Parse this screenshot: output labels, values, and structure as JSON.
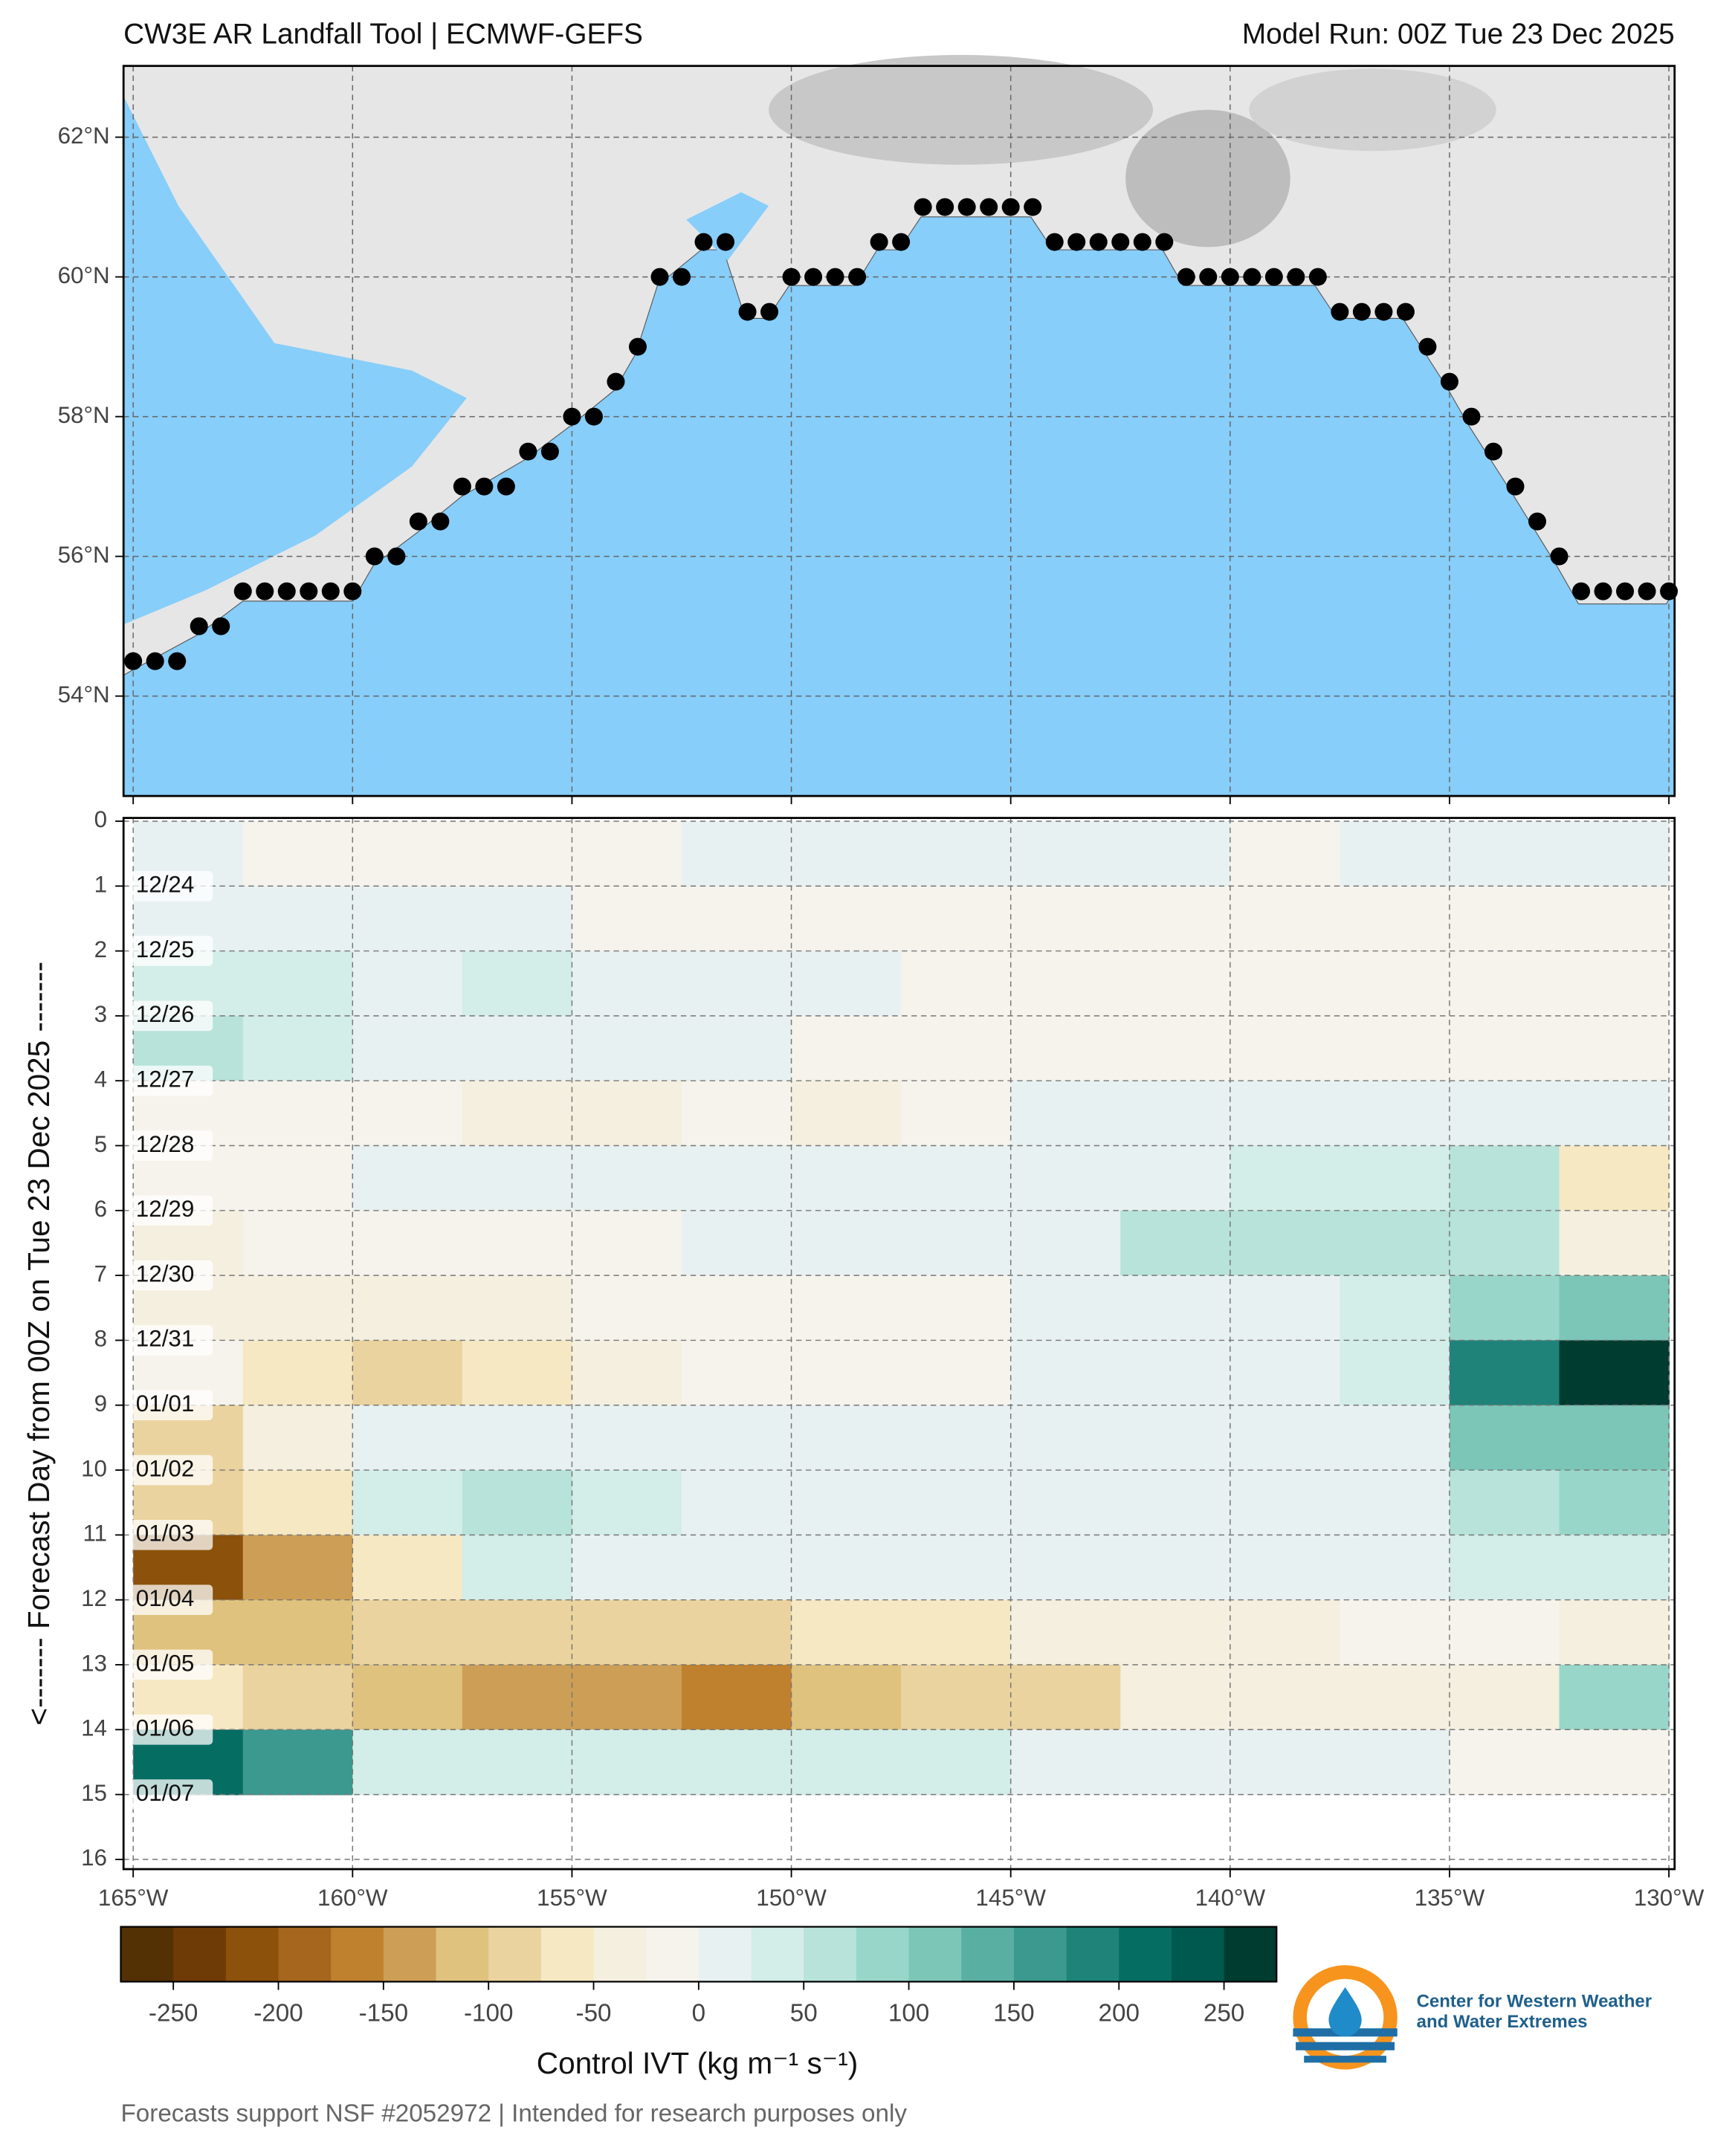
{
  "chart_data": [
    {
      "type": "map",
      "title": "CW3E AR Landfall Tool | ECMWF-GEFS",
      "subtitle": "Model Run: 00Z Tue 23 Dec 2025",
      "xlim": [
        -165.22,
        -129.87
      ],
      "ylim": [
        52.57,
        63.02
      ],
      "xticks": [
        {
          "value": -165,
          "label": "165°W"
        },
        {
          "value": -160,
          "label": "160°W"
        },
        {
          "value": -155,
          "label": "155°W"
        },
        {
          "value": -150,
          "label": "150°W"
        },
        {
          "value": -145,
          "label": "145°W"
        },
        {
          "value": -140,
          "label": "140°W"
        },
        {
          "value": -135,
          "label": "135°W"
        },
        {
          "value": -130,
          "label": "130°W"
        }
      ],
      "yticks": [
        {
          "value": 54,
          "label": "54°N"
        },
        {
          "value": 56,
          "label": "56°N"
        },
        {
          "value": 58,
          "label": "58°N"
        },
        {
          "value": 60,
          "label": "60°N"
        },
        {
          "value": 62,
          "label": "62°N"
        }
      ],
      "grid": true,
      "color": "#000000",
      "lon": [
        -165,
        -164.5,
        -164,
        -163.5,
        -163,
        -162.5,
        -162,
        -161.5,
        -161,
        -160.5,
        -160,
        -159.5,
        -159,
        -158.5,
        -158,
        -157.5,
        -157,
        -156.5,
        -156,
        -155.5,
        -155,
        -154.5,
        -154,
        -153.5,
        -153,
        -152.5,
        -152,
        -151.5,
        -151,
        -150.5,
        -150,
        -149.5,
        -149,
        -148.5,
        -148,
        -147.5,
        -147,
        -146.5,
        -146,
        -145.5,
        -145,
        -144.5,
        -144,
        -143.5,
        -143,
        -142.5,
        -142,
        -141.5,
        -141,
        -140.5,
        -140,
        -139.5,
        -139,
        -138.5,
        -138,
        -137.5,
        -137,
        -136.5,
        -136,
        -135.5,
        -135,
        -134.5,
        -134,
        -133.5,
        -133,
        -132.5,
        -132,
        -131.5,
        -131,
        -130.5,
        -130
      ],
      "lat": [
        54.5,
        54.5,
        54.5,
        55,
        55,
        55.5,
        55.5,
        55.5,
        55.5,
        55.5,
        55.5,
        56,
        56,
        56.5,
        56.5,
        57,
        57,
        57,
        57.5,
        57.5,
        58,
        58,
        58.5,
        59,
        60,
        60,
        60.5,
        60.5,
        59.5,
        59.5,
        60,
        60,
        60,
        60,
        60.5,
        60.5,
        61,
        61,
        61,
        61,
        61,
        61,
        60.5,
        60.5,
        60.5,
        60.5,
        60.5,
        60.5,
        60,
        60,
        60,
        60,
        60,
        60,
        60,
        59.5,
        59.5,
        59.5,
        59.5,
        59,
        58.5,
        58,
        57.5,
        57,
        56.5,
        56,
        55.5,
        55.5,
        55.5,
        55.5,
        55.5
      ]
    },
    {
      "type": "heatmap",
      "ylabel": "<------- Forecast Day from 00Z on Tue 23 Dec 2025 -------",
      "xlim": [
        -165.22,
        -129.87
      ],
      "ylim": [
        -0.05,
        16.15
      ],
      "yaxis_inverted": true,
      "grid": true,
      "xticks": [
        {
          "value": -165,
          "label": "165°W"
        },
        {
          "value": -160,
          "label": "160°W"
        },
        {
          "value": -155,
          "label": "155°W"
        },
        {
          "value": -150,
          "label": "150°W"
        },
        {
          "value": -145,
          "label": "145°W"
        },
        {
          "value": -140,
          "label": "140°W"
        },
        {
          "value": -135,
          "label": "135°W"
        },
        {
          "value": -130,
          "label": "130°W"
        }
      ],
      "yticks": [
        0,
        1,
        2,
        3,
        4,
        5,
        6,
        7,
        8,
        9,
        10,
        11,
        12,
        13,
        14,
        15,
        16
      ],
      "date_labels": [
        {
          "day": 1,
          "label": "12/24"
        },
        {
          "day": 2,
          "label": "12/25"
        },
        {
          "day": 3,
          "label": "12/26"
        },
        {
          "day": 4,
          "label": "12/27"
        },
        {
          "day": 5,
          "label": "12/28"
        },
        {
          "day": 6,
          "label": "12/29"
        },
        {
          "day": 7,
          "label": "12/30"
        },
        {
          "day": 8,
          "label": "12/31"
        },
        {
          "day": 9,
          "label": "01/01"
        },
        {
          "day": 10,
          "label": "01/02"
        },
        {
          "day": 11,
          "label": "01/03"
        },
        {
          "day": 12,
          "label": "01/04"
        },
        {
          "day": 13,
          "label": "01/05"
        },
        {
          "day": 14,
          "label": "01/06"
        },
        {
          "day": 15,
          "label": "01/07"
        }
      ],
      "x_edges": [
        -165,
        -162.5,
        -160,
        -157.5,
        -155,
        -152.5,
        -150,
        -147.5,
        -145,
        -142.5,
        -140,
        -137.5,
        -135,
        -132.5,
        -130
      ],
      "y_edges": [
        0,
        1,
        2,
        3,
        4,
        5,
        6,
        7,
        8,
        9,
        10,
        11,
        12,
        13,
        14,
        15
      ],
      "values": [
        [
          10,
          -10,
          -20,
          -10,
          -5,
          5,
          0,
          5,
          0,
          5,
          -5,
          5,
          10,
          10
        ],
        [
          20,
          10,
          0,
          0,
          -5,
          -5,
          -10,
          -10,
          -5,
          -5,
          -5,
          -10,
          -5,
          -5
        ],
        [
          40,
          30,
          20,
          30,
          20,
          10,
          0,
          -5,
          -5,
          -5,
          -5,
          -5,
          -5,
          -5
        ],
        [
          50,
          40,
          20,
          10,
          5,
          0,
          -5,
          -5,
          -5,
          -5,
          -5,
          -5,
          -5,
          -5
        ],
        [
          -10,
          -10,
          -5,
          -30,
          -30,
          -20,
          -30,
          -10,
          0,
          5,
          10,
          5,
          10,
          10
        ],
        [
          -20,
          -20,
          10,
          5,
          10,
          20,
          10,
          20,
          10,
          20,
          30,
          40,
          50,
          -60
        ],
        [
          -30,
          -20,
          -10,
          -10,
          -5,
          5,
          10,
          20,
          20,
          50,
          60,
          70,
          60,
          -40
        ],
        [
          -50,
          -30,
          -40,
          -30,
          -20,
          -20,
          -20,
          -10,
          0,
          10,
          20,
          30,
          80,
          120
        ],
        [
          -20,
          -60,
          -80,
          -60,
          -30,
          -20,
          -10,
          -5,
          0,
          0,
          10,
          30,
          180,
          270
        ],
        [
          -80,
          -40,
          10,
          20,
          20,
          10,
          5,
          5,
          5,
          10,
          10,
          20,
          100,
          120
        ],
        [
          -100,
          -60,
          40,
          60,
          30,
          20,
          10,
          5,
          5,
          5,
          5,
          10,
          50,
          90
        ],
        [
          -220,
          -140,
          -60,
          30,
          20,
          10,
          5,
          5,
          10,
          10,
          10,
          20,
          30,
          40
        ],
        [
          -120,
          -110,
          -100,
          -100,
          -100,
          -80,
          -70,
          -70,
          -50,
          -40,
          -30,
          -20,
          -20,
          -30
        ],
        [
          -60,
          -100,
          -110,
          -130,
          -150,
          -160,
          -110,
          -100,
          -90,
          -50,
          -40,
          -30,
          -30,
          80
        ],
        [
          200,
          150,
          40,
          30,
          30,
          40,
          40,
          30,
          20,
          20,
          10,
          5,
          -20,
          -20
        ]
      ],
      "colorbar": {
        "label": "Control IVT (kg m⁻¹ s⁻¹)",
        "levels": [
          -275,
          -250,
          -225,
          -200,
          -175,
          -150,
          -125,
          -100,
          -75,
          -50,
          -25,
          0,
          25,
          50,
          75,
          100,
          125,
          150,
          175,
          200,
          225,
          250,
          275
        ],
        "ticks": [
          -250,
          -200,
          -150,
          -100,
          -50,
          0,
          50,
          100,
          150,
          200,
          250
        ],
        "colors": [
          "#543005",
          "#6e3b07",
          "#8c510a",
          "#a6661d",
          "#bf812d",
          "#cd9e55",
          "#dfc27d",
          "#ead39e",
          "#f6e8c3",
          "#f4efdf",
          "#f5f3ec",
          "#e8f1f1",
          "#d3ede8",
          "#b7e3da",
          "#99d6ca",
          "#7cc6b8",
          "#5aafa3",
          "#3b9990",
          "#1f837a",
          "#066d63",
          "#00594e",
          "#003c30"
        ]
      }
    }
  ],
  "footer": "Forecasts support NSF #2052972 | Intended for research purposes only",
  "logo": {
    "text": [
      "Center for Western Weather",
      "and Water Extremes"
    ]
  }
}
